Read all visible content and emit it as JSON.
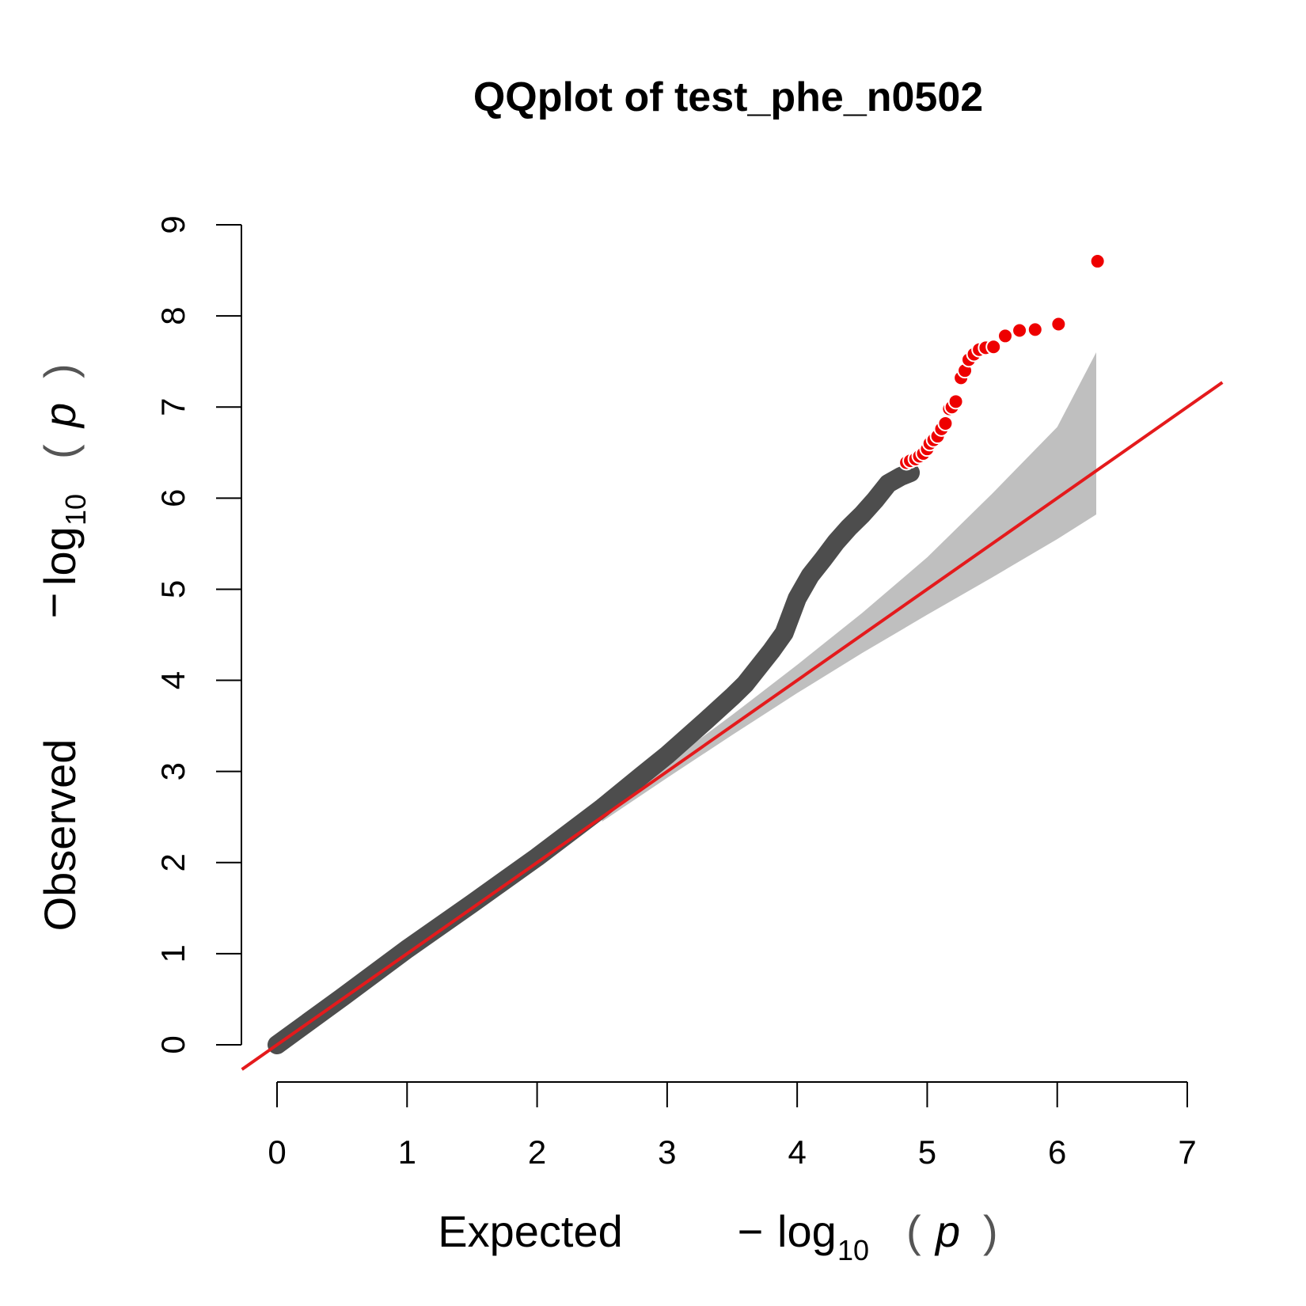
{
  "colors": {
    "background": "#ffffff",
    "observed_points": "#4d4d4d",
    "significant_points": "#ee0000",
    "reference_line": "#e41a1c",
    "confidence_band": "#bfbfbf",
    "axis": "#000000"
  },
  "chart_data": {
    "type": "scatter",
    "title": "QQplot of test_phe_n0502",
    "xlabel": {
      "word": "Expected",
      "minus": "−",
      "log": "log",
      "sub": "10",
      "lparen": "(",
      "p": "p",
      "rparen": ")"
    },
    "ylabel": {
      "word": "Observed",
      "minus": "−",
      "log": "log",
      "sub": "10",
      "lparen": "(",
      "p": "p",
      "rparen": ")"
    },
    "xlim": [
      0,
      7
    ],
    "ylim": [
      0,
      9
    ],
    "x_ticks": [
      "0",
      "1",
      "2",
      "3",
      "4",
      "5",
      "6",
      "7"
    ],
    "y_ticks": [
      "0",
      "1",
      "2",
      "3",
      "4",
      "5",
      "6",
      "7",
      "8",
      "9"
    ],
    "reference_line": {
      "slope": 1,
      "intercept": 0
    },
    "confidence_band": {
      "x": [
        2.5,
        3.0,
        3.5,
        4.0,
        4.5,
        5.0,
        5.5,
        6.0,
        6.3
      ],
      "upper": [
        2.56,
        3.09,
        3.62,
        4.17,
        4.74,
        5.35,
        6.05,
        6.78,
        7.6
      ],
      "lower": [
        2.45,
        2.93,
        3.4,
        3.86,
        4.3,
        4.72,
        5.13,
        5.55,
        5.82
      ]
    },
    "observed_curve": {
      "x": [
        0.0,
        0.5,
        1.0,
        1.5,
        2.0,
        2.5,
        2.8,
        3.0,
        3.3,
        3.5,
        3.6,
        3.8,
        3.9,
        4.0,
        4.1,
        4.2,
        4.3,
        4.4,
        4.5,
        4.6,
        4.7,
        4.8,
        4.87
      ],
      "y": [
        0.0,
        0.52,
        1.05,
        1.55,
        2.06,
        2.6,
        2.95,
        3.18,
        3.56,
        3.82,
        3.96,
        4.32,
        4.52,
        4.9,
        5.15,
        5.33,
        5.52,
        5.68,
        5.82,
        5.98,
        6.16,
        6.24,
        6.28
      ]
    },
    "significant_points": {
      "x": [
        4.84,
        4.87,
        4.91,
        4.94,
        4.97,
        5.0,
        5.02,
        5.05,
        5.08,
        5.11,
        5.14,
        5.17,
        5.19,
        5.22,
        5.26,
        5.29,
        5.32,
        5.36,
        5.4,
        5.45,
        5.51,
        5.6,
        5.71,
        5.83,
        6.01,
        6.31
      ],
      "y": [
        6.39,
        6.41,
        6.43,
        6.46,
        6.49,
        6.54,
        6.6,
        6.64,
        6.68,
        6.76,
        6.82,
        6.98,
        7.0,
        7.06,
        7.32,
        7.4,
        7.52,
        7.58,
        7.63,
        7.65,
        7.66,
        7.78,
        7.84,
        7.85,
        7.91,
        8.6
      ]
    }
  }
}
